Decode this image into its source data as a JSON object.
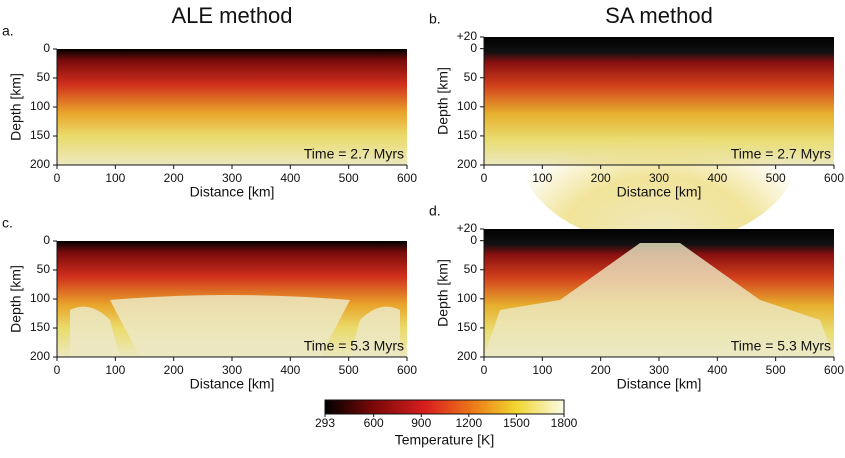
{
  "column_titles": [
    "ALE method",
    "SA method"
  ],
  "chart_data": [
    {
      "type": "heatmap",
      "panel": "a.",
      "annotation": "Time = 2.7 Myrs",
      "xlabel": "Distance [km]",
      "ylabel": "Depth [km]",
      "xlim": [
        0,
        600
      ],
      "xticks": [
        0,
        100,
        200,
        300,
        400,
        500,
        600
      ],
      "ylim": [
        200,
        0
      ],
      "yticks": [
        0,
        50,
        100,
        150,
        200
      ]
    },
    {
      "type": "heatmap",
      "panel": "b.",
      "annotation": "Time = 2.7 Myrs",
      "xlabel": "Distance [km]",
      "ylabel": "Depth [km]",
      "xlim": [
        0,
        600
      ],
      "xticks": [
        0,
        100,
        200,
        300,
        400,
        500,
        600
      ],
      "ylim": [
        200,
        -20
      ],
      "yticks": [
        {
          "value": -20,
          "label": "+20"
        },
        0,
        50,
        100,
        150,
        200
      ]
    },
    {
      "type": "heatmap",
      "panel": "c.",
      "annotation": "Time = 5.3 Myrs",
      "xlabel": "Distance [km]",
      "ylabel": "Depth [km]",
      "xlim": [
        0,
        600
      ],
      "xticks": [
        0,
        100,
        200,
        300,
        400,
        500,
        600
      ],
      "ylim": [
        200,
        0
      ],
      "yticks": [
        0,
        50,
        100,
        150,
        200
      ]
    },
    {
      "type": "heatmap",
      "panel": "d.",
      "annotation": "Time = 5.3 Myrs",
      "xlabel": "Distance [km]",
      "ylabel": "Depth [km]",
      "xlim": [
        0,
        600
      ],
      "xticks": [
        0,
        100,
        200,
        300,
        400,
        500,
        600
      ],
      "ylim": [
        200,
        -20
      ],
      "yticks": [
        {
          "value": -20,
          "label": "+20"
        },
        0,
        50,
        100,
        150,
        200
      ]
    }
  ],
  "colorbar": {
    "label": "Temperature [K]",
    "lim": [
      293,
      1800
    ],
    "ticks": [
      293,
      600,
      900,
      1200,
      1500,
      1800
    ]
  }
}
